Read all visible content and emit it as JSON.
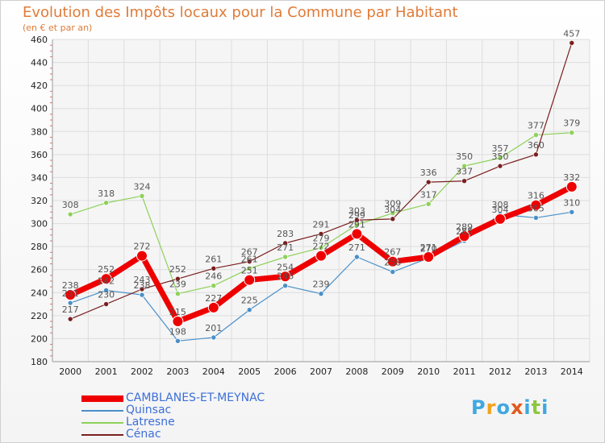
{
  "title": "Evolution des Impôts locaux pour la Commune par Habitant",
  "subtitle": "(en € et par an)",
  "logo": {
    "letters": [
      "P",
      "r",
      "o",
      "x",
      "i",
      "t",
      "i"
    ],
    "colors": [
      "#3fa8e0",
      "#f2a21a",
      "#3fa8e0",
      "#e05a1c",
      "#3fa8e0",
      "#8dc63f",
      "#3fa8e0"
    ]
  },
  "chart_data": {
    "type": "line",
    "x": [
      2000,
      2001,
      2002,
      2003,
      2004,
      2005,
      2006,
      2007,
      2008,
      2009,
      2010,
      2011,
      2012,
      2013,
      2014
    ],
    "ylim": [
      180,
      460
    ],
    "yticks": [
      180,
      200,
      220,
      240,
      260,
      280,
      300,
      320,
      340,
      360,
      380,
      400,
      420,
      440,
      460
    ],
    "grid": true,
    "legend_position": "bottom-left",
    "series": [
      {
        "name": "Quinsac",
        "color": "#4a8fc9",
        "width": 1.2,
        "marker": 3,
        "values": [
          231,
          242,
          238,
          198,
          201,
          225,
          246,
          239,
          271,
          258,
          270,
          285,
          308,
          305,
          310
        ]
      },
      {
        "name": "Latresne",
        "color": "#8ed15a",
        "width": 1.2,
        "marker": 3,
        "values": [
          308,
          318,
          324,
          239,
          246,
          261,
          271,
          279,
          299,
          309,
          317,
          350,
          357,
          377,
          379
        ]
      },
      {
        "name": "Cénac",
        "color": "#7a1f1f",
        "width": 1.2,
        "marker": 3,
        "values": [
          217,
          230,
          243,
          252,
          261,
          267,
          283,
          291,
          303,
          304,
          336,
          337,
          350,
          360,
          457
        ]
      },
      {
        "name": "CAMBLANES-ET-MEYNAC",
        "color": "#ee0000",
        "width": 7,
        "marker": 6.5,
        "values": [
          238,
          252,
          272,
          215,
          227,
          251,
          254,
          272,
          291,
          267,
          271,
          289,
          304,
          316,
          332
        ]
      }
    ],
    "legend_order": [
      "CAMBLANES-ET-MEYNAC",
      "Quinsac",
      "Latresne",
      "Cénac"
    ]
  }
}
